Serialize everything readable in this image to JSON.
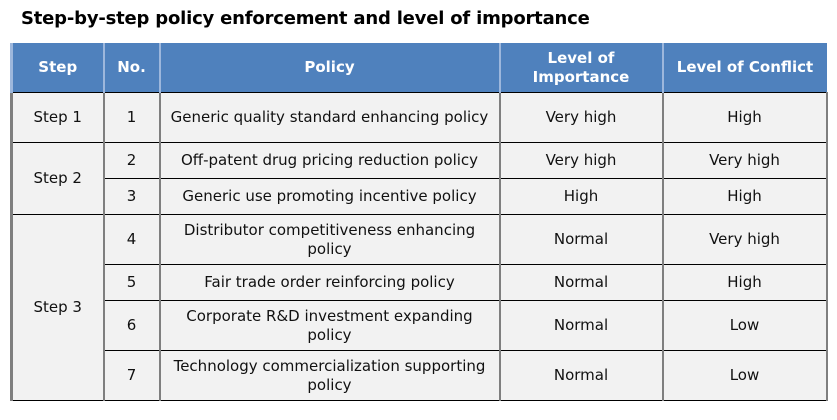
{
  "title": "Step-by-step policy enforcement and level of importance",
  "headers": {
    "step": "Step",
    "no": "No.",
    "policy": "Policy",
    "importance": "Level of Importance",
    "conflict": "Level of Conflict"
  },
  "steps": [
    "Step 1",
    "Step 2",
    "Step 3"
  ],
  "rows": [
    {
      "no": "1",
      "policy": "Generic quality standard enhancing policy",
      "importance": "Very high",
      "conflict": "High"
    },
    {
      "no": "2",
      "policy": "Off-patent drug pricing reduction policy",
      "importance": "Very high",
      "conflict": "Very high"
    },
    {
      "no": "3",
      "policy": "Generic use promoting incentive policy",
      "importance": "High",
      "conflict": "High"
    },
    {
      "no": "4",
      "policy": "Distributor competitiveness enhancing policy",
      "importance": "Normal",
      "conflict": "Very high"
    },
    {
      "no": "5",
      "policy": "Fair trade order reinforcing policy",
      "importance": "Normal",
      "conflict": "High"
    },
    {
      "no": "6",
      "policy": "Corporate R&D investment expanding policy",
      "importance": "Normal",
      "conflict": "Low"
    },
    {
      "no": "7",
      "policy": "Technology commercialization supporting policy",
      "importance": "Normal",
      "conflict": "Low"
    }
  ]
}
